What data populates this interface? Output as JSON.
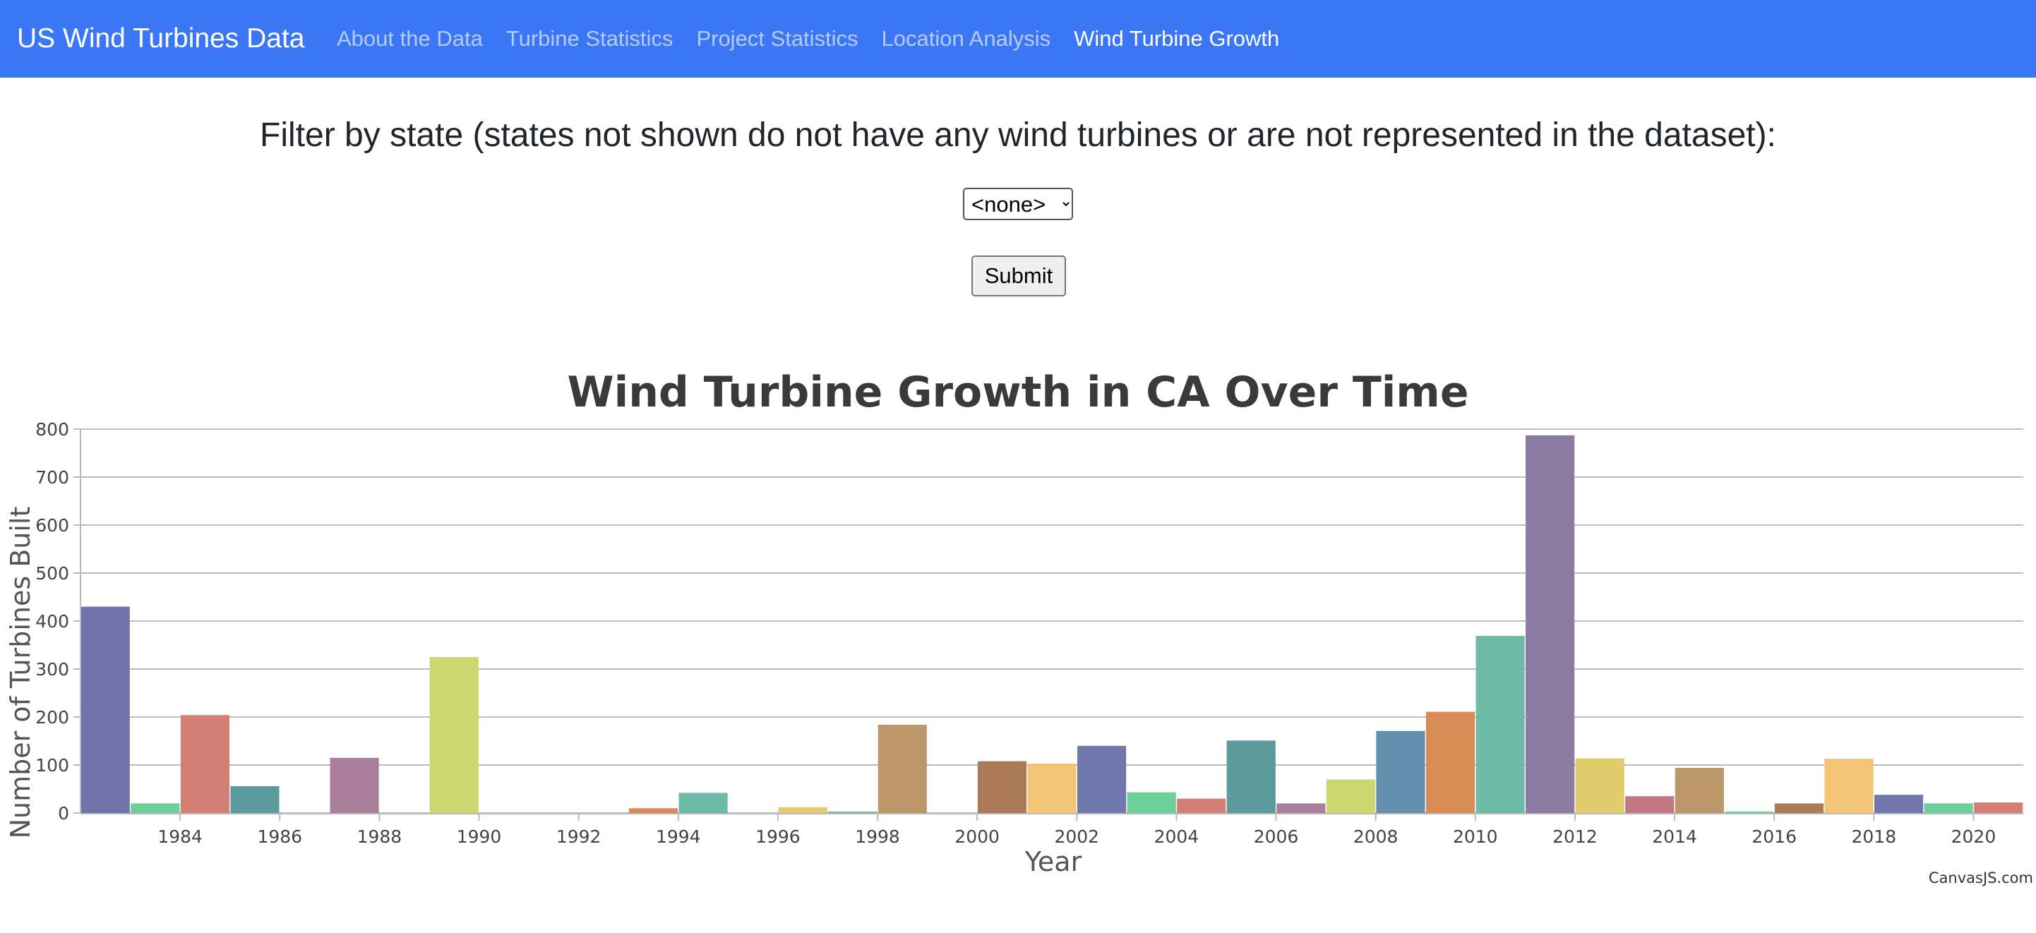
{
  "navbar": {
    "brand": "US Wind Turbines Data",
    "links": [
      {
        "label": "About the Data",
        "active": false
      },
      {
        "label": "Turbine Statistics",
        "active": false
      },
      {
        "label": "Project Statistics",
        "active": false
      },
      {
        "label": "Location Analysis",
        "active": false
      },
      {
        "label": "Wind Turbine Growth",
        "active": true
      }
    ]
  },
  "filter": {
    "label": "Filter by state (states not shown do not have any wind turbines or are not represented in the dataset):",
    "selected": "<none>",
    "submit_label": "Submit"
  },
  "chart_data": {
    "type": "bar",
    "title": "Wind Turbine Growth in CA Over Time",
    "xlabel": "Year",
    "ylabel": "Number of Turbines Built",
    "ylim": [
      0,
      800
    ],
    "y_ticks": [
      0,
      100,
      200,
      300,
      400,
      500,
      600,
      700,
      800
    ],
    "x_ticks": [
      1984,
      1986,
      1988,
      1990,
      1992,
      1994,
      1996,
      1998,
      2000,
      2002,
      2004,
      2006,
      2008,
      2010,
      2012,
      2014,
      2016,
      2018,
      2020
    ],
    "grid": true,
    "categories": [
      1983,
      1984,
      1985,
      1986,
      1987,
      1988,
      1989,
      1990,
      1991,
      1992,
      1993,
      1994,
      1995,
      1996,
      1997,
      1998,
      1999,
      2000,
      2001,
      2002,
      2003,
      2004,
      2005,
      2006,
      2007,
      2008,
      2009,
      2010,
      2011,
      2012,
      2013,
      2014,
      2015,
      2016,
      2017,
      2018,
      2019,
      2020,
      2021
    ],
    "values": [
      430,
      20,
      204,
      56,
      0,
      115,
      0,
      325,
      0,
      0,
      0,
      10,
      42,
      0,
      12,
      3,
      184,
      0,
      108,
      103,
      140,
      43,
      30,
      151,
      20,
      70,
      171,
      211,
      369,
      787,
      114,
      35,
      94,
      3,
      20,
      113,
      38,
      20,
      22
    ],
    "colors": [
      "#6f75a8",
      "#6dcf9c",
      "#d47f76",
      "#5d9a9e",
      "#a97f9c",
      "#a97f9c",
      "#cdd76f",
      "#cdd76f",
      "#6dbaa9",
      "#6dbaa9",
      "#e1cc6d",
      "#dd8a59",
      "#6dbaa9",
      "#e1cc6d",
      "#e1cc6d",
      "#6dbaa9",
      "#bc9769",
      "#a97f9c",
      "#ab7a57",
      "#f3c476",
      "#6f77ad",
      "#6dcf9c",
      "#d47f76",
      "#5d9a9e",
      "#a97f9c",
      "#cdd76f",
      "#6390ad",
      "#d98b55",
      "#6dbaa9",
      "#8b7aa2",
      "#e1cc6d",
      "#c07883",
      "#bc9769",
      "#6dcf9c",
      "#ab7a57",
      "#f3c476",
      "#6f77ad",
      "#6dcf9c",
      "#d47f76"
    ],
    "watermark": "CanvasJS.com"
  }
}
